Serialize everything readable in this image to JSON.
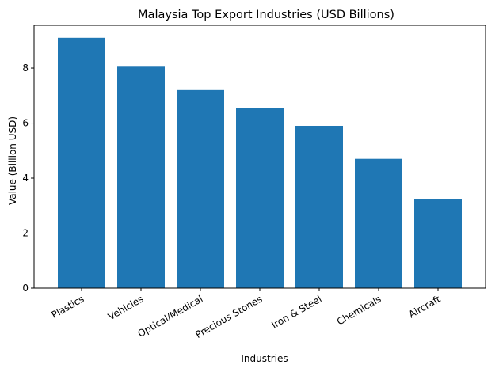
{
  "chart_data": {
    "type": "bar",
    "title": "Malaysia Top Export Industries (USD Billions)",
    "xlabel": "Industries",
    "ylabel": "Value (Billion USD)",
    "categories": [
      "Plastics",
      "Vehicles",
      "Optical/Medical",
      "Precious Stones",
      "Iron & Steel",
      "Chemicals",
      "Aircraft"
    ],
    "values": [
      9.1,
      8.05,
      7.2,
      6.55,
      5.9,
      4.7,
      3.25
    ],
    "ylim": [
      0,
      9.555
    ],
    "yticks": [
      0,
      2,
      4,
      6,
      8
    ],
    "bar_color": "#1f77b4",
    "grid": false,
    "legend": "none"
  }
}
